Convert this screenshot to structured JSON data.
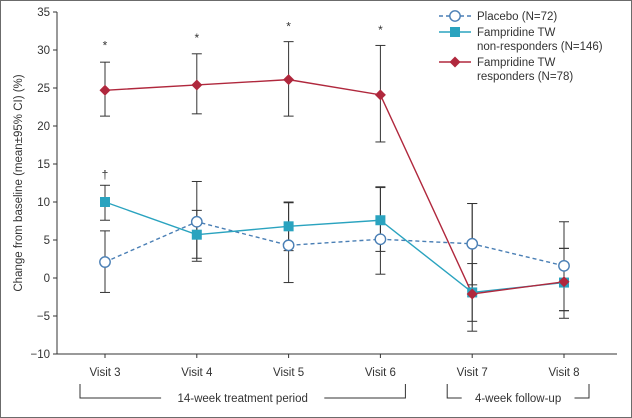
{
  "chart_data": {
    "type": "line",
    "title": "",
    "ylabel": "Change from baseline (mean±95% CI) (%)",
    "xlabel": "",
    "ylim": [
      -10,
      35
    ],
    "yticks": [
      -10,
      -5,
      0,
      5,
      10,
      15,
      20,
      25,
      30,
      35
    ],
    "ytick_labels": [
      "−10",
      "−5",
      "0",
      "5",
      "10",
      "15",
      "20",
      "25",
      "30",
      "35"
    ],
    "categories": [
      "Visit 3",
      "Visit 4",
      "Visit 5",
      "Visit 6",
      "Visit 7",
      "Visit 8"
    ],
    "periods": [
      {
        "label": "14-week treatment period",
        "from": 0,
        "to": 3
      },
      {
        "label": "4-week follow-up",
        "from": 4,
        "to": 5
      }
    ],
    "series": [
      {
        "name": "Placebo (N=72)",
        "legend_lines": [
          "Placebo (N=72)"
        ],
        "color": "#4a7fb5",
        "marker": "circle",
        "dashed": true,
        "values": [
          2.1,
          7.4,
          4.3,
          5.1,
          4.5,
          1.6
        ],
        "ci_low": [
          -1.9,
          2.2,
          -0.6,
          0.5,
          -0.9,
          -4.3
        ],
        "ci_high": [
          6.2,
          12.7,
          9.9,
          11.9,
          9.8,
          7.4
        ]
      },
      {
        "name": "Fampridine TW non-responders (N=146)",
        "legend_lines": [
          "Fampridine TW",
          "non-responders (N=146)"
        ],
        "color": "#2aa3bf",
        "marker": "square",
        "dashed": false,
        "values": [
          10.0,
          5.7,
          6.8,
          7.6,
          -1.9,
          -0.6
        ],
        "ci_low": [
          7.6,
          2.6,
          3.6,
          3.5,
          -5.7,
          -5.3
        ],
        "ci_high": [
          12.2,
          8.9,
          10.0,
          12.0,
          1.9,
          3.9
        ]
      },
      {
        "name": "Fampridine TW responders (N=78)",
        "legend_lines": [
          "Fampridine TW",
          "responders (N=78)"
        ],
        "color": "#b0283d",
        "marker": "diamond",
        "dashed": false,
        "values": [
          24.7,
          25.4,
          26.1,
          24.1,
          -2.1,
          -0.5
        ],
        "ci_low": [
          21.3,
          21.6,
          21.3,
          17.9,
          -7.0,
          -4.3
        ],
        "ci_high": [
          28.4,
          29.5,
          31.1,
          30.6,
          9.8,
          3.9
        ]
      }
    ],
    "annotations": [
      {
        "text": "*",
        "category": "Visit 3",
        "y": 30.6
      },
      {
        "text": "*",
        "category": "Visit 4",
        "y": 31.6
      },
      {
        "text": "*",
        "category": "Visit 5",
        "y": 33.1
      },
      {
        "text": "*",
        "category": "Visit 6",
        "y": 32.6
      },
      {
        "text": "†",
        "category": "Visit 3",
        "y": 13.6
      }
    ]
  }
}
